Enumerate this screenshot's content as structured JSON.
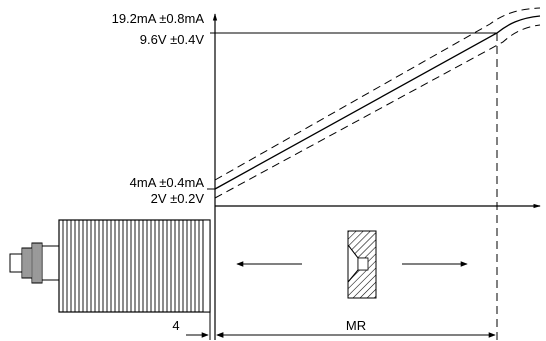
{
  "labels": {
    "current_high": "19.2mA ±0.8mA",
    "voltage_high": "9.6V ±0.4V",
    "current_low": "4mA ±0.4mA",
    "voltage_low": "2V ±0.2V",
    "offset": "4",
    "range": "MR"
  },
  "icons": {
    "sensor": "cylindrical-sensor-with-connector",
    "target": "hatched-target-profile",
    "arrow_left": "arrow-left",
    "arrow_right": "arrow-right"
  }
}
